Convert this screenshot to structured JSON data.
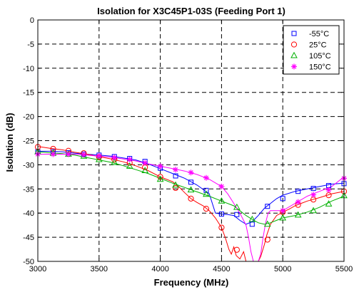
{
  "chart_data": {
    "type": "line",
    "title": "Isolation for X3C45P1-03S (Feeding Port 1)",
    "xlabel": "Frequency (MHz)",
    "ylabel": "Isolation (dB)",
    "xlim": [
      3000,
      5500
    ],
    "ylim": [
      -50,
      0
    ],
    "xticks": [
      3000,
      3500,
      4000,
      4500,
      5000,
      5500
    ],
    "yticks": [
      0,
      -5,
      -10,
      -15,
      -20,
      -25,
      -30,
      -35,
      -40,
      -45,
      -50
    ],
    "grid": true,
    "legend_position": "top-right",
    "series": [
      {
        "name": "-55°C",
        "color": "#0000ff",
        "marker": "square",
        "x": [
          3000,
          3100,
          3200,
          3300,
          3400,
          3500,
          3600,
          3700,
          3800,
          3900,
          4000,
          4100,
          4200,
          4300,
          4400,
          4450,
          4500,
          4550,
          4600,
          4650,
          4700,
          4750,
          4800,
          4850,
          4900,
          4950,
          5000,
          5100,
          5200,
          5300,
          5400,
          5500
        ],
        "y": [
          -27.2,
          -27.2,
          -27.3,
          -27.6,
          -27.8,
          -28.0,
          -28.2,
          -28.6,
          -29.0,
          -29.8,
          -30.8,
          -31.8,
          -32.8,
          -34.2,
          -36.0,
          -40.0,
          -40.2,
          -40.3,
          -40.5,
          -41.5,
          -42.3,
          -41.8,
          -40.5,
          -39.0,
          -38.0,
          -37.0,
          -36.3,
          -35.5,
          -35.0,
          -34.5,
          -34.0,
          -33.8
        ],
        "markers_x": [
          3000,
          3125,
          3250,
          3375,
          3500,
          3625,
          3750,
          3875,
          4000,
          4125,
          4250,
          4375,
          4500,
          4625,
          4750,
          4875,
          5000,
          5125,
          5250,
          5375,
          5500
        ],
        "markers_y": [
          -27.3,
          -27.3,
          -27.5,
          -27.8,
          -28.0,
          -28.3,
          -28.7,
          -29.3,
          -30.7,
          -32.3,
          -33.6,
          -35.3,
          -40.2,
          -40.3,
          -42.3,
          -38.6,
          -37.0,
          -35.5,
          -34.9,
          -34.3,
          -33.9
        ]
      },
      {
        "name": "25°C",
        "color": "#ff0000",
        "marker": "circle",
        "x": [
          3000,
          3100,
          3200,
          3300,
          3400,
          3500,
          3600,
          3700,
          3800,
          3900,
          4000,
          4100,
          4150,
          4200,
          4250,
          4300,
          4350,
          4400,
          4450,
          4500,
          4530,
          4560,
          4580,
          4600,
          4620,
          4650,
          4680,
          4700,
          4720,
          4740,
          4760,
          4780,
          4800,
          4820,
          4850,
          4870,
          4900,
          4950,
          5000,
          5050,
          5100,
          5150,
          5200,
          5300,
          5400,
          5500
        ],
        "y": [
          -26.2,
          -26.6,
          -26.9,
          -27.4,
          -27.8,
          -28.3,
          -28.8,
          -29.4,
          -30.2,
          -31.2,
          -32.5,
          -33.5,
          -34.5,
          -35.8,
          -37.0,
          -37.8,
          -38.5,
          -39.5,
          -41.0,
          -43.0,
          -45.0,
          -47.5,
          -48.5,
          -47.0,
          -48.8,
          -49.5,
          -48.0,
          -50,
          -50,
          -50,
          -50,
          -50,
          -50,
          -49.0,
          -46.5,
          -44.5,
          -42.3,
          -40.5,
          -39.8,
          -39.2,
          -38.5,
          -38.0,
          -37.5,
          -36.8,
          -36.0,
          -35.5
        ],
        "markers_x": [
          3000,
          3125,
          3250,
          3375,
          3500,
          3625,
          3750,
          3875,
          4000,
          4125,
          4250,
          4375,
          4500,
          4625,
          4875,
          5000,
          5125,
          5250,
          5375,
          5500
        ],
        "markers_y": [
          -26.3,
          -26.7,
          -27.1,
          -27.6,
          -28.4,
          -28.9,
          -29.6,
          -30.5,
          -32.5,
          -34.8,
          -37.0,
          -39.1,
          -43.0,
          -47.6,
          -45.5,
          -39.8,
          -38.3,
          -37.2,
          -36.3,
          -35.5
        ]
      },
      {
        "name": "105°C",
        "color": "#00b000",
        "marker": "triangle",
        "x": [
          3000,
          3100,
          3200,
          3300,
          3400,
          3500,
          3600,
          3700,
          3800,
          3900,
          4000,
          4100,
          4200,
          4300,
          4400,
          4500,
          4600,
          4650,
          4700,
          4750,
          4800,
          4850,
          4900,
          4950,
          5000,
          5100,
          5200,
          5300,
          5400,
          5500
        ],
        "y": [
          -27.3,
          -27.5,
          -27.7,
          -28.0,
          -28.5,
          -29.0,
          -29.5,
          -30.2,
          -31.0,
          -31.8,
          -32.8,
          -33.8,
          -34.7,
          -35.6,
          -36.5,
          -37.5,
          -38.5,
          -39.5,
          -40.5,
          -41.3,
          -42.0,
          -42.3,
          -42.0,
          -41.5,
          -41.0,
          -40.5,
          -39.8,
          -38.8,
          -37.5,
          -36.5
        ],
        "markers_x": [
          3000,
          3125,
          3250,
          3375,
          3500,
          3625,
          3750,
          3875,
          4000,
          4125,
          4250,
          4375,
          4500,
          4625,
          4750,
          4875,
          5000,
          5125,
          5250,
          5375,
          5500
        ],
        "markers_y": [
          -27.3,
          -27.6,
          -27.8,
          -28.2,
          -28.9,
          -29.5,
          -30.3,
          -31.2,
          -33.0,
          -34.2,
          -35.2,
          -36.1,
          -37.5,
          -38.8,
          -41.3,
          -42.3,
          -41.0,
          -40.4,
          -39.5,
          -38.1,
          -36.4
        ]
      },
      {
        "name": "150°C",
        "color": "#ff00ff",
        "marker": "star",
        "x": [
          3000,
          3100,
          3200,
          3300,
          3400,
          3500,
          3600,
          3700,
          3800,
          3900,
          4000,
          4100,
          4200,
          4300,
          4400,
          4500,
          4550,
          4600,
          4650,
          4700,
          4720,
          4740,
          4760,
          4780,
          4800,
          4820,
          4840,
          4860,
          4880,
          4900,
          4950,
          5000,
          5100,
          5200,
          5300,
          5400,
          5500
        ],
        "y": [
          -27.8,
          -27.8,
          -27.8,
          -27.8,
          -28.0,
          -28.2,
          -28.4,
          -28.8,
          -29.2,
          -29.8,
          -30.3,
          -30.8,
          -31.3,
          -32.0,
          -33.0,
          -34.5,
          -36.0,
          -38.0,
          -40.0,
          -42.5,
          -45.0,
          -48.0,
          -50,
          -50,
          -50,
          -48.5,
          -45.0,
          -42.0,
          -40.0,
          -39.5,
          -39.5,
          -39.5,
          -38.0,
          -36.5,
          -35.5,
          -34.5,
          -32.5
        ],
        "markers_x": [
          3000,
          3125,
          3250,
          3375,
          3500,
          3625,
          3750,
          3875,
          4000,
          4125,
          4250,
          4375,
          4500,
          5000,
          5125,
          5250,
          5375,
          5500
        ],
        "markers_y": [
          -27.8,
          -27.8,
          -27.8,
          -27.9,
          -28.2,
          -28.5,
          -28.9,
          -29.6,
          -30.3,
          -31.0,
          -31.6,
          -32.7,
          -34.5,
          -39.5,
          -37.7,
          -36.2,
          -35.2,
          -32.8
        ]
      }
    ]
  }
}
